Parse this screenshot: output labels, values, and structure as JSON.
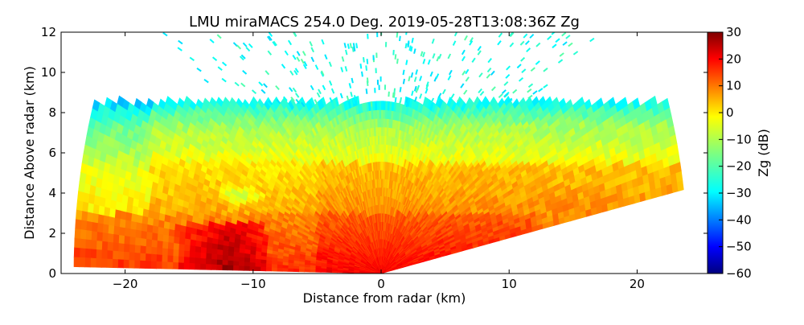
{
  "chart_data": {
    "type": "heatmap",
    "title": "LMU miraMACS 254.0 Deg. 2019-05-28T13:08:36Z  Zg",
    "xlabel": "Distance from radar (km)",
    "ylabel": "Distance Above radar  (km)",
    "xlim": [
      -25,
      25.5
    ],
    "ylim": [
      0,
      12
    ],
    "xticks": [
      -20,
      -10,
      0,
      10,
      20
    ],
    "yticks": [
      0,
      2,
      4,
      6,
      8,
      10,
      12
    ],
    "grid": false,
    "colorbar": {
      "label": "Zg (dB)",
      "range": [
        -60,
        30
      ],
      "ticks": [
        30,
        20,
        10,
        0,
        -10,
        -20,
        -30,
        -40,
        -50,
        -60
      ],
      "colormap": "jet"
    },
    "scan": {
      "azimuth_deg": 254.0,
      "max_range_km": 24,
      "left_elevation_min_deg": 0.8,
      "right_elevation_min_deg": 10.0
    },
    "features": [
      {
        "name": "cloud-top",
        "x_range": [
          -24,
          24
        ],
        "y": 8.0
      },
      {
        "name": "low-level-core",
        "x_range": [
          -14,
          -10
        ],
        "y_range": [
          0,
          2
        ],
        "value_dB": 28
      },
      {
        "name": "weak-echo-pocket",
        "x": -11,
        "y": 3.9,
        "value_dB": -10
      },
      {
        "name": "ice-speckle-region",
        "x_range": [
          -22,
          22
        ],
        "y_range": [
          8.5,
          12
        ],
        "value_dB": -25
      }
    ]
  }
}
